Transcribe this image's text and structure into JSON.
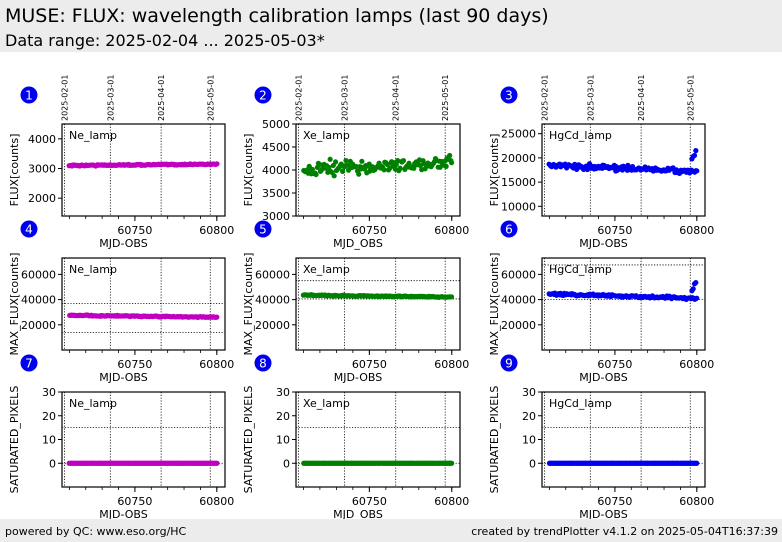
{
  "header": {
    "title": "MUSE: FLUX: wavelength calibration lamps (last 90 days)",
    "subtitle": "Data range: 2025-02-04 ... 2025-05-03*"
  },
  "footer": {
    "left": "powered by QC: www.eso.org/HC",
    "right": "created by trendPlotter v4.1.2 on 2025-05-04T16:37:39"
  },
  "colors": {
    "Ne_lamp": "#c000c0",
    "Xe_lamp": "#008000",
    "HgCd_lamp": "#0000ee",
    "badge": "#0000ee",
    "header_bg": "#ececec"
  },
  "chart_data": {
    "type": "scatter",
    "xlim": [
      60705.5,
      60805
    ],
    "x_ticks": [
      60750,
      60800
    ],
    "x_minor_step": 10,
    "date_markers": [
      {
        "label": "2025-02-01",
        "mjd": 60707
      },
      {
        "label": "2025-03-01",
        "mjd": 60735
      },
      {
        "label": "2025-04-01",
        "mjd": 60766
      },
      {
        "label": "2025-05-01",
        "mjd": 60796
      }
    ],
    "mjd_range": [
      60710,
      60800
    ],
    "panels": [
      {
        "id": 1,
        "badge": "1",
        "lamp": "Ne_lamp",
        "ylabel": "FLUX[counts]",
        "xlabel": "MJD-OBS",
        "ylim": [
          1400,
          4500
        ],
        "yticks": [
          2000,
          3000,
          4000
        ],
        "hlines": [],
        "trend": {
          "start": 3100,
          "end": 3150,
          "noise": 25
        },
        "show_dates": true
      },
      {
        "id": 2,
        "badge": "2",
        "lamp": "Xe_lamp",
        "ylabel": "FLUX[counts]",
        "xlabel": "MJD_OBS",
        "ylim": [
          3000,
          5000
        ],
        "yticks": [
          3000,
          3500,
          4000,
          4500,
          5000
        ],
        "hlines": [],
        "trend": {
          "start": 4000,
          "end": 4150,
          "noise": 180
        },
        "show_dates": true
      },
      {
        "id": 3,
        "badge": "3",
        "lamp": "HgCd_lamp",
        "ylabel": "FLUX[counts]",
        "xlabel": "MJD-OBS",
        "ylim": [
          8000,
          27000
        ],
        "yticks": [
          10000,
          15000,
          20000,
          25000
        ],
        "hlines": [],
        "trend": {
          "start": 18500,
          "end": 17200,
          "noise": 700,
          "tail": [
            19800,
            20300,
            20500,
            21500
          ]
        },
        "show_dates": true
      },
      {
        "id": 4,
        "badge": "4",
        "lamp": "Ne_lamp",
        "ylabel": "MAX_FLUX[counts]",
        "xlabel": "MJD-OBS",
        "ylim": [
          0,
          73000
        ],
        "yticks": [
          20000,
          40000,
          60000
        ],
        "hlines": [
          14000,
          37000
        ],
        "trend": {
          "start": 27500,
          "end": 26000,
          "noise": 500
        },
        "show_dates": false
      },
      {
        "id": 5,
        "badge": "5",
        "lamp": "Xe_lamp",
        "ylabel": "MAX_FLUX[counts]",
        "xlabel": "MJD-OBS",
        "ylim": [
          0,
          73000
        ],
        "yticks": [
          20000,
          40000,
          60000
        ],
        "hlines": [
          40500,
          55000
        ],
        "trend": {
          "start": 43500,
          "end": 42000,
          "noise": 500
        },
        "show_dates": false
      },
      {
        "id": 6,
        "badge": "6",
        "lamp": "HgCd_lamp",
        "ylabel": "MAX_FLUX[counts]",
        "xlabel": "MJD-OBS",
        "ylim": [
          0,
          73000
        ],
        "yticks": [
          20000,
          40000,
          60000
        ],
        "hlines": [
          40000,
          67500
        ],
        "trend": {
          "start": 44500,
          "end": 41000,
          "noise": 1200,
          "tail": [
            47000,
            48500,
            52500,
            53500
          ]
        },
        "show_dates": false
      },
      {
        "id": 7,
        "badge": "7",
        "lamp": "Ne_lamp",
        "ylabel": "SATURATED_PIXELS",
        "xlabel": "MJD-OBS",
        "ylim": [
          -10,
          30
        ],
        "yticks": [
          0,
          10,
          20,
          30
        ],
        "hlines": [
          0,
          15
        ],
        "trend": {
          "start": 0,
          "end": 0,
          "noise": 0
        },
        "show_dates": false
      },
      {
        "id": 8,
        "badge": "8",
        "lamp": "Xe_lamp",
        "ylabel": "SATURATED_PIXELS",
        "xlabel": "MJD_OBS",
        "ylim": [
          -10,
          30
        ],
        "yticks": [
          0,
          10,
          20,
          30
        ],
        "hlines": [
          0,
          15
        ],
        "trend": {
          "start": 0,
          "end": 0,
          "noise": 0
        },
        "show_dates": false
      },
      {
        "id": 9,
        "badge": "9",
        "lamp": "HgCd_lamp",
        "ylabel": "SATURATED_PIXELS",
        "xlabel": "MJD-OBS",
        "ylim": [
          -10,
          30
        ],
        "yticks": [
          0,
          10,
          20,
          30
        ],
        "hlines": [
          0,
          15
        ],
        "trend": {
          "start": 0,
          "end": 0,
          "noise": 0
        },
        "show_dates": false
      }
    ]
  }
}
